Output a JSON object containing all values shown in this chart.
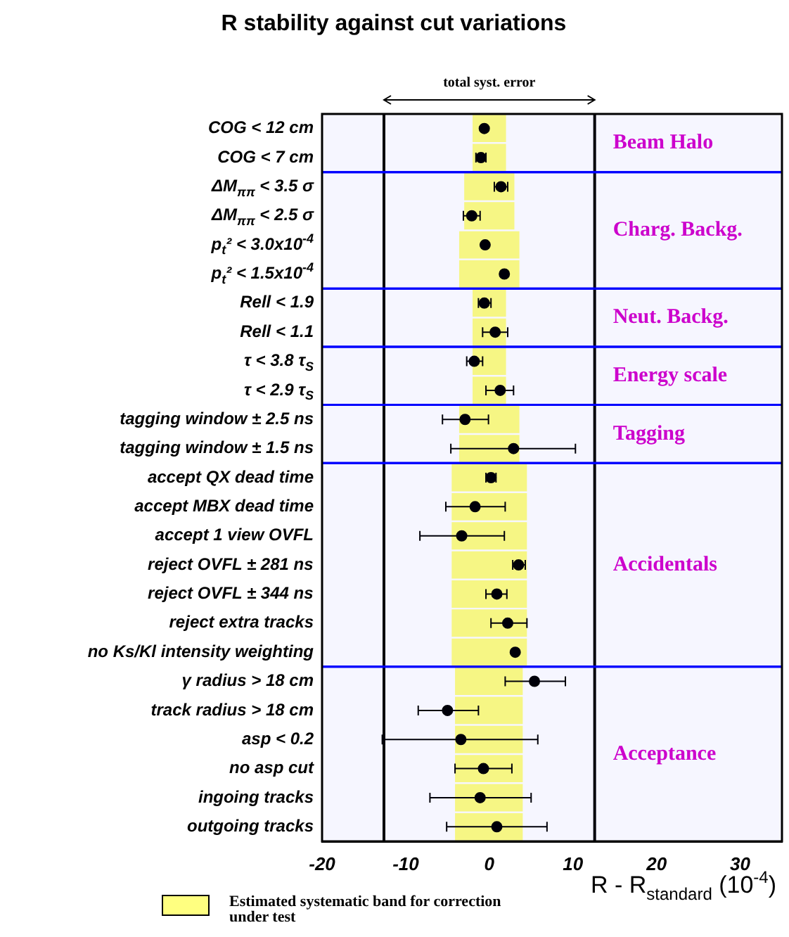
{
  "chart_data": {
    "type": "scatter",
    "title": "R stability against cut variations",
    "xlabel": "R - R$_{standard}$ (10$^{-4}$)",
    "orientation": "horizontal",
    "marker": "circle",
    "legend": "bottom left",
    "categories": [
      "COG < 12 cm",
      "COG < 7 cm",
      "ΔM$_{ππ}$ < 3.5 σ",
      "ΔM$_{ππ}$ < 2.5 σ",
      "p$_{t}$² < 3.0x10$^{-4}$",
      "p$_{t}$² < 1.5x10$^{-4}$",
      "Rell < 1.9",
      "Rell < 1.1",
      "τ < 3.8 τ$_{S}$",
      "τ < 2.9 τ$_{S}$",
      "tagging window ± 2.5 ns",
      "tagging window ± 1.5 ns",
      "accept QX dead time",
      "accept MBX dead time",
      "accept 1 view OVFL",
      "reject OVFL ± 281 ns",
      "reject OVFL ± 344 ns",
      "reject extra tracks",
      "no Ks/Kl intensity weighting",
      "γ radius > 18 cm",
      "track radius > 18 cm",
      "asp < 0.2",
      "no asp cut",
      "ingoing tracks",
      "outgoing tracks"
    ],
    "series": [
      {
        "type": "bar",
        "name": "Estimated systematic band for correction under test",
        "color": "#ffff80",
        "base": [
          -2,
          -2,
          -3,
          -3,
          -3.6,
          -3.6,
          -2,
          -2,
          -2,
          -2,
          -3.6,
          -3.6,
          -4.5,
          -4.5,
          -4.5,
          -4.5,
          -4.5,
          -4.5,
          -4.5,
          -4.1,
          -4.1,
          -4.1,
          -4.1,
          -4.1,
          -4.1
        ],
        "values": [
          4,
          4,
          6,
          6,
          7.2,
          7.2,
          4,
          4,
          4,
          4,
          7.2,
          7.2,
          9,
          9,
          9,
          9,
          9,
          9,
          9,
          8.1,
          8.1,
          8.1,
          8.1,
          8.1,
          8.1
        ]
      },
      {
        "color": "#000000",
        "values": [
          -0.6,
          -1.0,
          1.4,
          -2.1,
          -0.5,
          1.8,
          -0.6,
          0.7,
          -1.8,
          1.3,
          -2.9,
          2.9,
          0.2,
          -1.7,
          -3.3,
          3.5,
          0.9,
          2.2,
          3.1,
          5.4,
          -5.0,
          -3.4,
          -0.7,
          -1.1,
          0.9
        ],
        "errors": [
          null,
          [
            -1.6,
            -0.4
          ],
          [
            0.6,
            2.2
          ],
          [
            -3.1,
            -1.1
          ],
          null,
          null,
          [
            -1.3,
            0.2
          ],
          [
            -0.8,
            2.2
          ],
          [
            -2.7,
            -0.8
          ],
          [
            -0.4,
            2.9
          ],
          [
            -5.6,
            -0.1
          ],
          [
            -4.6,
            10.3
          ],
          [
            -0.4,
            0.8
          ],
          [
            -5.2,
            1.9
          ],
          [
            -8.3,
            1.8
          ],
          [
            2.8,
            4.3
          ],
          [
            -0.4,
            2.1
          ],
          [
            0.2,
            4.5
          ],
          null,
          [
            1.9,
            9.1
          ],
          [
            -8.5,
            -1.3
          ],
          [
            -12.8,
            5.8
          ],
          [
            -4.1,
            2.7
          ],
          [
            -7.1,
            5.0
          ],
          [
            -5.1,
            6.9
          ]
        ]
      }
    ],
    "xlim": [
      -20,
      35
    ],
    "xticks": [
      -20,
      -10,
      0,
      10,
      20,
      30
    ],
    "ref_lines": [
      {
        "axis": "x",
        "value": -12.6,
        "color": "#000000"
      },
      {
        "axis": "x",
        "value": 12.6,
        "color": "#000000"
      }
    ],
    "bands": [
      {
        "axis": "y",
        "from": "COG < 12 cm",
        "to": "COG < 7 cm",
        "label": "Beam Halo",
        "color": "#0000ff"
      },
      {
        "axis": "y",
        "from": "ΔM$_{ππ}$ < 3.5 σ",
        "to": "p$_{t}$² < 1.5x10$^{-4}$",
        "label": "Charg. Backg.",
        "color": "#0000ff"
      },
      {
        "axis": "y",
        "from": "Rell < 1.9",
        "to": "Rell < 1.1",
        "label": "Neut. Backg.",
        "color": "#0000ff"
      },
      {
        "axis": "y",
        "from": "τ < 3.8 τ$_{S}$",
        "to": "τ < 2.9 τ$_{S}$",
        "label": "Energy scale",
        "color": "#0000ff"
      },
      {
        "axis": "y",
        "from": "tagging window ± 2.5 ns",
        "to": "tagging window ± 1.5 ns",
        "label": "Tagging",
        "color": "#0000ff"
      },
      {
        "axis": "y",
        "from": "accept QX dead time",
        "to": "no Ks/Kl intensity weighting",
        "label": "Accidentals",
        "color": "#0000ff"
      },
      {
        "axis": "y",
        "from": "γ radius > 18 cm",
        "to": "outgoing tracks",
        "label": "Acceptance",
        "color": "#0000ff"
      }
    ],
    "annotations": [
      "total syst. error"
    ]
  }
}
